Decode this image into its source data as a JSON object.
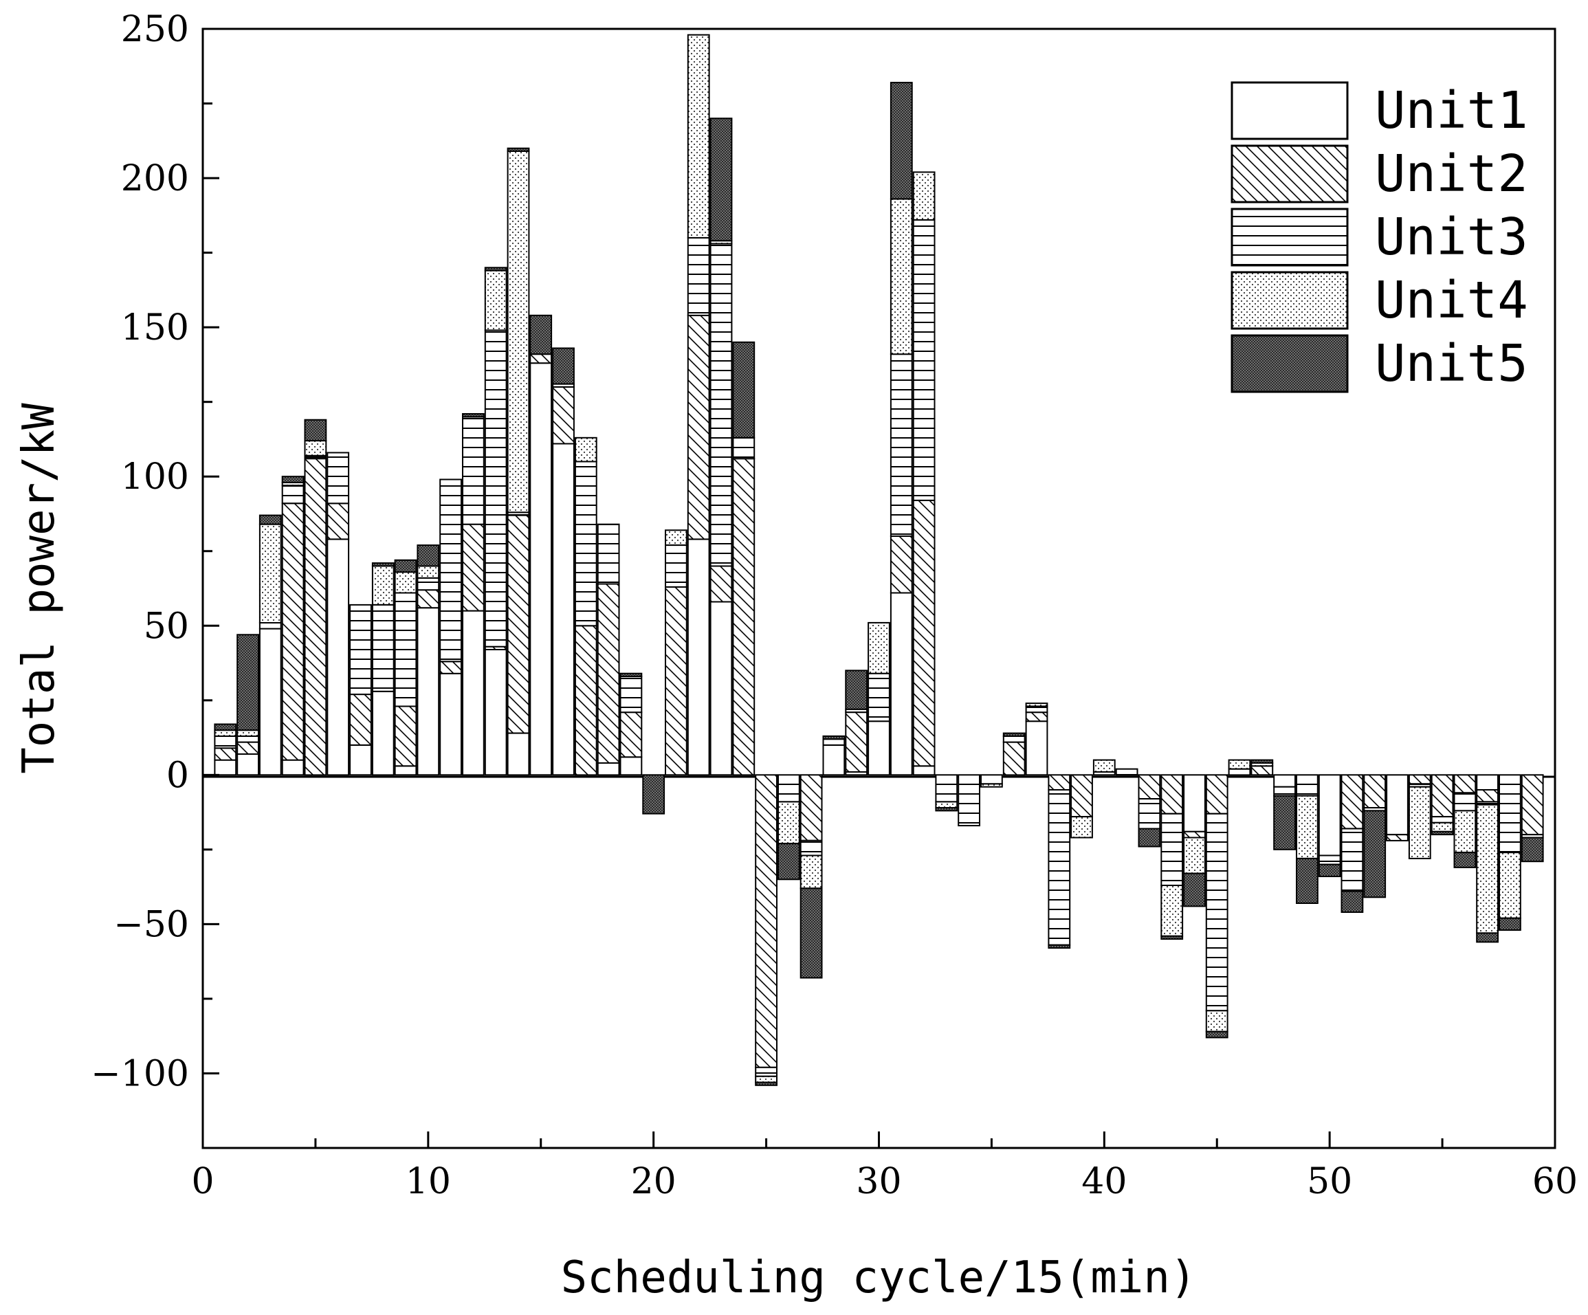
{
  "chart_data": {
    "type": "bar",
    "stacked": true,
    "xlabel": "Scheduling cycle/15(min)",
    "ylabel": "Total power/kW",
    "xlim": [
      0,
      60
    ],
    "ylim": [
      -125,
      250
    ],
    "xticks": [
      0,
      10,
      20,
      30,
      40,
      50,
      60
    ],
    "yticks": [
      -100,
      -50,
      0,
      50,
      100,
      150,
      200,
      250
    ],
    "ytick_labels": [
      "−100",
      "−50",
      "0",
      "50",
      "100",
      "150",
      "200",
      "250"
    ],
    "grid": false,
    "legend_position": "top-right",
    "series": [
      {
        "name": "Unit1",
        "pattern": "blank"
      },
      {
        "name": "Unit2",
        "pattern": "diagonal"
      },
      {
        "name": "Unit3",
        "pattern": "horizontal"
      },
      {
        "name": "Unit4",
        "pattern": "dots"
      },
      {
        "name": "Unit5",
        "pattern": "dark"
      }
    ],
    "x": [
      1,
      2,
      3,
      4,
      5,
      6,
      7,
      8,
      9,
      10,
      11,
      12,
      13,
      14,
      15,
      16,
      17,
      18,
      19,
      20,
      21,
      22,
      23,
      24,
      25,
      26,
      27,
      28,
      29,
      30,
      31,
      32,
      33,
      34,
      35,
      36,
      37,
      38,
      39,
      40,
      41,
      42,
      43,
      44,
      45,
      46,
      47,
      48,
      49,
      50,
      51,
      52,
      53,
      54,
      55,
      56,
      57,
      58,
      59
    ],
    "stacks": [
      [
        5,
        4,
        4,
        2,
        2
      ],
      [
        7,
        4,
        2,
        2,
        32
      ],
      [
        49,
        0,
        2,
        33,
        3
      ],
      [
        5,
        86,
        6,
        1,
        2
      ],
      [
        0,
        106,
        1,
        5,
        7
      ],
      [
        79,
        12,
        17,
        0,
        0
      ],
      [
        10,
        17,
        30,
        0,
        0
      ],
      [
        28,
        0,
        29,
        13,
        1
      ],
      [
        3,
        20,
        38,
        7,
        4
      ],
      [
        56,
        6,
        4,
        4,
        7
      ],
      [
        34,
        4,
        61,
        0,
        0
      ],
      [
        55,
        29,
        36,
        0,
        1
      ],
      [
        42,
        1,
        106,
        20,
        1
      ],
      [
        14,
        73,
        1,
        121,
        1
      ],
      [
        138,
        3,
        0,
        0,
        13
      ],
      [
        111,
        19,
        1,
        0,
        12
      ],
      [
        0,
        50,
        55,
        8,
        0
      ],
      [
        4,
        60,
        20,
        0,
        0
      ],
      [
        6,
        15,
        12,
        0,
        1
      ],
      [
        0,
        0,
        0,
        0,
        -13
      ],
      [
        0,
        63,
        14,
        5,
        0
      ],
      [
        79,
        75,
        26,
        68,
        0
      ],
      [
        58,
        12,
        108,
        1,
        41
      ],
      [
        0,
        106,
        7,
        0,
        32
      ],
      [
        0,
        -98,
        -3,
        -2,
        -1
      ],
      [
        0,
        0,
        -9,
        -14,
        -12
      ],
      [
        0,
        -22,
        -5,
        -11,
        -30
      ],
      [
        10,
        0,
        2,
        0,
        1
      ],
      [
        1,
        20,
        1,
        0,
        13
      ],
      [
        18,
        0,
        16,
        17,
        0
      ],
      [
        61,
        19,
        61,
        52,
        39
      ],
      [
        3,
        89,
        94,
        16,
        0
      ],
      [
        0,
        0,
        -9,
        -2,
        -1
      ],
      [
        0,
        0,
        -17,
        0,
        0
      ],
      [
        0,
        0,
        -3,
        -1,
        0
      ],
      [
        0,
        11,
        2,
        0,
        1
      ],
      [
        18,
        3,
        2,
        1,
        0
      ],
      [
        0,
        -5,
        -52,
        0,
        -1
      ],
      [
        0,
        -14,
        0,
        -7,
        0
      ],
      [
        1,
        0,
        0,
        4,
        0
      ],
      [
        0,
        0,
        2,
        0,
        0
      ],
      [
        0,
        -8,
        -10,
        0,
        -6
      ],
      [
        0,
        -13,
        -24,
        -17,
        -1
      ],
      [
        -19,
        -2,
        0,
        -12,
        -11
      ],
      [
        0,
        -13,
        -66,
        -7,
        -2
      ],
      [
        2,
        0,
        0,
        3,
        0
      ],
      [
        0,
        3,
        0,
        1,
        1
      ],
      [
        -4,
        0,
        -3,
        0,
        -18
      ],
      [
        0,
        0,
        -7,
        -21,
        -15
      ],
      [
        -27,
        0,
        -3,
        0,
        -4
      ],
      [
        0,
        -18,
        -21,
        0,
        -7
      ],
      [
        0,
        -11,
        -1,
        0,
        -29
      ],
      [
        -20,
        -2,
        0,
        0,
        0
      ],
      [
        0,
        -3,
        -1,
        -24,
        0
      ],
      [
        0,
        -14,
        -2,
        -3,
        -1
      ],
      [
        0,
        -6,
        -6,
        -14,
        -5
      ],
      [
        -5,
        -4,
        -1,
        -43,
        -3
      ],
      [
        0,
        0,
        -26,
        -22,
        -4
      ],
      [
        0,
        -20,
        -1,
        0,
        -8
      ]
    ]
  }
}
